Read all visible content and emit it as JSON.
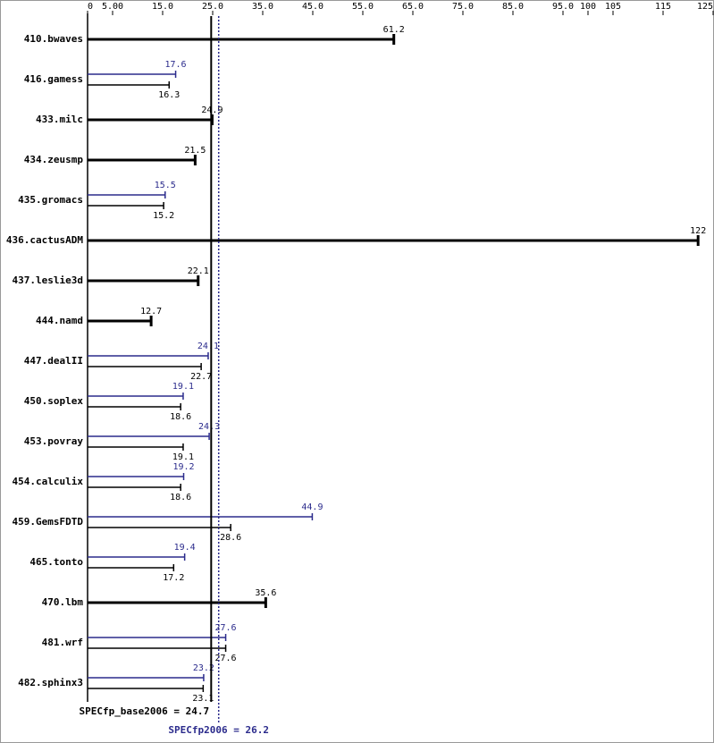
{
  "chart_data": {
    "type": "hbar",
    "xlim": [
      0,
      125
    ],
    "xticks": [
      0,
      {
        "value": 5,
        "label": "5.00"
      },
      {
        "value": 15,
        "label": "15.0"
      },
      {
        "value": 25,
        "label": "25.0"
      },
      {
        "value": 35,
        "label": "35.0"
      },
      {
        "value": 45,
        "label": "45.0"
      },
      {
        "value": 55,
        "label": "55.0"
      },
      {
        "value": 65,
        "label": "65.0"
      },
      {
        "value": 75,
        "label": "75.0"
      },
      {
        "value": 85,
        "label": "85.0"
      },
      {
        "value": 95,
        "label": "95.0"
      },
      100,
      105,
      115,
      125
    ],
    "categories": [
      "410.bwaves",
      "416.gamess",
      "433.milc",
      "434.zeusmp",
      "435.gromacs",
      "436.cactusADM",
      "437.leslie3d",
      "444.namd",
      "447.dealII",
      "450.soplex",
      "453.povray",
      "454.calculix",
      "459.GemsFDTD",
      "465.tonto",
      "470.lbm",
      "481.wrf",
      "482.sphinx3"
    ],
    "series": [
      {
        "color": "#2b2b8c",
        "values": [
          null,
          17.6,
          null,
          null,
          15.5,
          null,
          null,
          null,
          24.1,
          19.1,
          24.3,
          19.2,
          44.9,
          19.4,
          null,
          27.6,
          23.2
        ]
      },
      {
        "color": "#000000",
        "values": [
          61.2,
          16.3,
          24.9,
          21.5,
          15.2,
          122,
          22.1,
          12.7,
          22.7,
          18.6,
          19.1,
          18.6,
          28.6,
          17.2,
          35.6,
          27.6,
          23.1
        ]
      }
    ],
    "reference_lines": [
      {
        "label": "SPECfp_base2006 = 24.7",
        "value": 24.7,
        "color": "#000000",
        "style": "solid"
      },
      {
        "label": "SPECfp2006 = 26.2",
        "value": 26.2,
        "color": "#2b2b8c",
        "style": "dotted"
      }
    ]
  }
}
